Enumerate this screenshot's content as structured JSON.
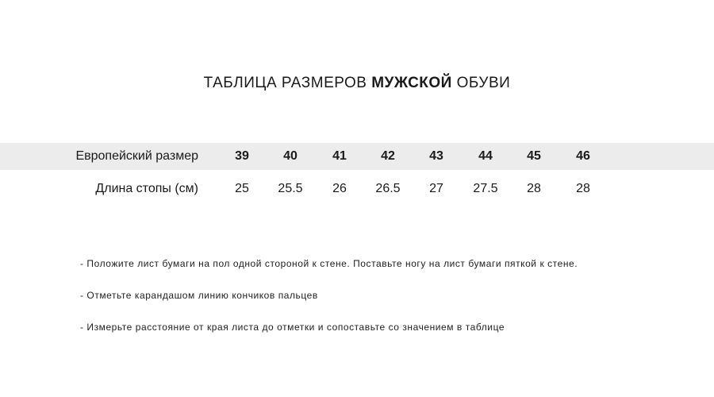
{
  "title": {
    "prefix": "ТАБЛИЦА РАЗМЕРОВ ",
    "bold": "МУЖСКОЙ",
    "suffix": " ОБУВИ"
  },
  "table": {
    "rows": [
      {
        "label": "Европейский размер",
        "values": [
          "39",
          "40",
          "41",
          "42",
          "43",
          "44",
          "45",
          "46"
        ]
      },
      {
        "label": "Длина стопы (см)",
        "values": [
          "25",
          "25.5",
          "26",
          "26.5",
          "27",
          "27.5",
          "28",
          "28"
        ]
      }
    ]
  },
  "notes": [
    "- Положите лист бумаги на пол одной стороной к стене. Поставьте ногу на лист бумаги пяткой к стене.",
    "- Отметьте карандашом линию кончиков пальцев",
    "- Измерьте расстояние от края листа до отметки и сопоставьте со значением в таблице"
  ],
  "colors": {
    "header_band": "#ececec"
  }
}
